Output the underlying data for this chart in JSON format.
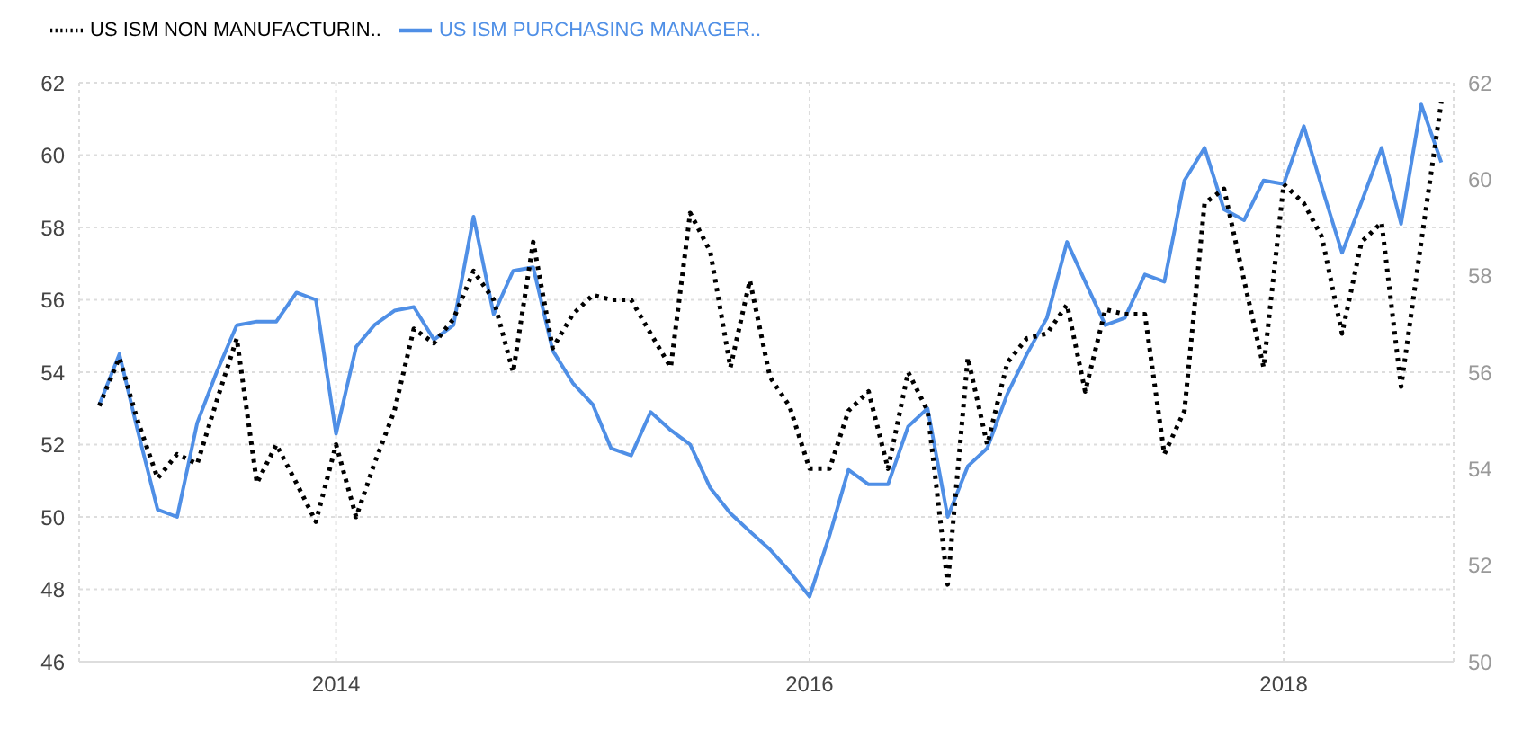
{
  "chart_data": {
    "type": "line",
    "legend": "top left",
    "grid": true,
    "marker": "none",
    "x": [
      "2013-01",
      "2013-02",
      "2013-03",
      "2013-04",
      "2013-05",
      "2013-06",
      "2013-07",
      "2013-08",
      "2013-09",
      "2013-10",
      "2013-11",
      "2013-12",
      "2014-01",
      "2014-02",
      "2014-03",
      "2014-04",
      "2014-05",
      "2014-06",
      "2014-07",
      "2014-08",
      "2014-09",
      "2014-10",
      "2014-11",
      "2014-12",
      "2015-01",
      "2015-02",
      "2015-03",
      "2015-04",
      "2015-05",
      "2015-06",
      "2015-07",
      "2015-08",
      "2015-09",
      "2015-10",
      "2015-11",
      "2015-12",
      "2016-01",
      "2016-02",
      "2016-03",
      "2016-04",
      "2016-05",
      "2016-06",
      "2016-07",
      "2016-08",
      "2016-09",
      "2016-10",
      "2016-11",
      "2016-12",
      "2017-01",
      "2017-02",
      "2017-03",
      "2017-04",
      "2017-05",
      "2017-06",
      "2017-07",
      "2017-08",
      "2017-09",
      "2017-10",
      "2017-11",
      "2017-12",
      "2018-01",
      "2018-02",
      "2018-03",
      "2018-04",
      "2018-05",
      "2018-06",
      "2018-07",
      "2018-08",
      "2018-09"
    ],
    "xlim": [
      "2012-12-01",
      "2018-09-20"
    ],
    "xticks": [
      {
        "value": "2014-01",
        "label": "2014"
      },
      {
        "value": "2016-01",
        "label": "2016"
      },
      {
        "value": "2018-01",
        "label": "2018"
      }
    ],
    "ylim": [
      46,
      62
    ],
    "yticks": [
      46,
      48,
      50,
      52,
      54,
      56,
      58,
      60,
      62
    ],
    "y2lim": [
      50,
      62
    ],
    "y2ticks": [
      50,
      52,
      54,
      56,
      58,
      60,
      62
    ],
    "series": [
      {
        "name": "US ISM PURCHASING MANAGER..",
        "color": "#4f8fe6",
        "line_style": "solid",
        "values": [
          53.1,
          54.5,
          52.4,
          50.2,
          50.0,
          52.6,
          54.0,
          55.3,
          55.4,
          55.4,
          56.2,
          56.0,
          52.3,
          54.7,
          55.3,
          55.7,
          55.8,
          54.9,
          55.3,
          58.3,
          55.6,
          56.8,
          56.9,
          54.6,
          53.7,
          53.1,
          51.9,
          51.7,
          52.9,
          52.4,
          52.0,
          50.8,
          50.1,
          49.6,
          49.1,
          48.5,
          47.8,
          49.5,
          51.3,
          50.9,
          50.9,
          52.5,
          53.0,
          50.0,
          51.4,
          51.9,
          53.4,
          54.5,
          55.5,
          57.6,
          56.5,
          55.3,
          55.5,
          56.7,
          56.5,
          59.3,
          60.2,
          58.5,
          58.2,
          59.3,
          59.2,
          60.8,
          59.1,
          57.3,
          58.7,
          60.2,
          58.1,
          61.4,
          59.8
        ]
      },
      {
        "name": "US ISM NON MANUFACTURIN..",
        "color": "#000000",
        "line_style": "dotted",
        "axis": "y2",
        "values": [
          55.3,
          56.3,
          55.0,
          53.8,
          54.3,
          54.1,
          55.4,
          56.7,
          53.7,
          54.5,
          53.7,
          52.9,
          54.5,
          53.0,
          54.1,
          55.2,
          56.9,
          56.6,
          57.1,
          58.1,
          57.5,
          56.0,
          58.7,
          56.5,
          57.2,
          57.6,
          57.5,
          57.5,
          56.8,
          56.1,
          59.3,
          58.5,
          56.1,
          57.9,
          55.9,
          55.3,
          54.0,
          54.0,
          55.2,
          55.6,
          54.0,
          56.0,
          55.2,
          51.6,
          56.3,
          54.5,
          56.2,
          56.7,
          56.8,
          57.4,
          55.6,
          57.3,
          57.2,
          57.2,
          54.3,
          55.2,
          59.5,
          59.8,
          57.9,
          56.1,
          59.9,
          59.5,
          58.8,
          56.8,
          58.7,
          59.1,
          55.7,
          58.7,
          61.6
        ]
      }
    ]
  }
}
